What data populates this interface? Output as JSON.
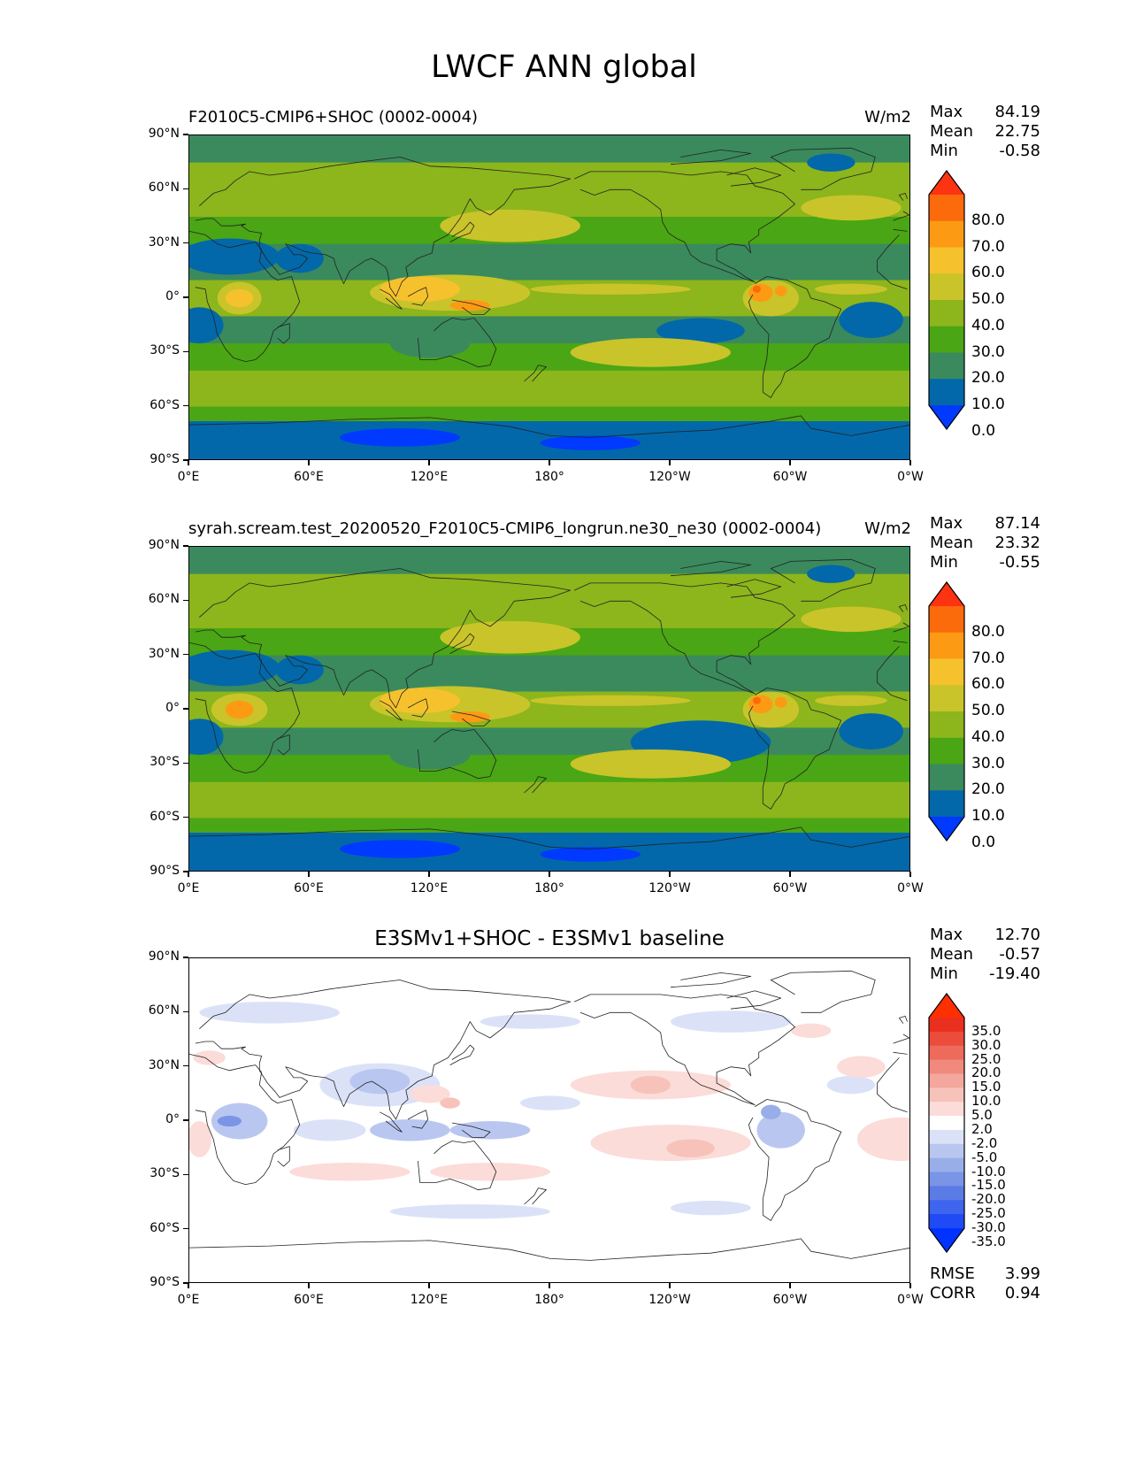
{
  "figure_title": "LWCF ANN global",
  "panels": [
    {
      "title": "F2010C5-CMIP6+SHOC (0002-0004)",
      "units": "W/m2",
      "stats": [
        {
          "label": "Max",
          "value": "84.19"
        },
        {
          "label": "Mean",
          "value": "22.75"
        },
        {
          "label": "Min",
          "value": "-0.58"
        }
      ],
      "colorbar_labels": [
        "80.0",
        "70.0",
        "60.0",
        "50.0",
        "40.0",
        "30.0",
        "20.0",
        "10.0",
        "0.0"
      ],
      "colors": [
        "#0039ff",
        "#0268aa",
        "#3a8a5e",
        "#4aa614",
        "#8db51c",
        "#c9c42a",
        "#f5c12d",
        "#fc9a14",
        "#fb6a0b",
        "#fd3312"
      ]
    },
    {
      "title": "syrah.scream.test_20200520_F2010C5-CMIP6_longrun.ne30_ne30 (0002-0004)",
      "units": "W/m2",
      "stats": [
        {
          "label": "Max",
          "value": "87.14"
        },
        {
          "label": "Mean",
          "value": "23.32"
        },
        {
          "label": "Min",
          "value": "-0.55"
        }
      ],
      "colorbar_labels": [
        "80.0",
        "70.0",
        "60.0",
        "50.0",
        "40.0",
        "30.0",
        "20.0",
        "10.0",
        "0.0"
      ],
      "colors": [
        "#0039ff",
        "#0268aa",
        "#3a8a5e",
        "#4aa614",
        "#8db51c",
        "#c9c42a",
        "#f5c12d",
        "#fc9a14",
        "#fb6a0b",
        "#fd3312"
      ]
    },
    {
      "title": "E3SMv1+SHOC - E3SMv1 baseline",
      "units": "",
      "stats": [
        {
          "label": "Max",
          "value": "12.70"
        },
        {
          "label": "Mean",
          "value": "-0.57"
        },
        {
          "label": "Min",
          "value": "-19.40"
        }
      ],
      "colorbar_labels": [
        "35.0",
        "30.0",
        "25.0",
        "20.0",
        "15.0",
        "10.0",
        "5.0",
        "2.0",
        "-2.0",
        "-5.0",
        "-10.0",
        "-15.0",
        "-20.0",
        "-25.0",
        "-30.0",
        "-35.0"
      ],
      "colors": [
        "#0033ff",
        "#1f4af5",
        "#3f64ee",
        "#5b7be6",
        "#7a94e6",
        "#98aee9",
        "#b9c7f0",
        "#dbe2f8",
        "#ffffff",
        "#fbdcd8",
        "#f7c2ba",
        "#f4a79d",
        "#f1897c",
        "#ee6b5c",
        "#ec4c3c",
        "#ea2f1f",
        "#ff3000"
      ],
      "bottom_stats": [
        {
          "label": "RMSE",
          "value": "3.99"
        },
        {
          "label": "CORR",
          "value": "0.94"
        }
      ]
    }
  ],
  "lat_labels": [
    "90°N",
    "60°N",
    "30°N",
    "0°",
    "30°S",
    "60°S",
    "90°S"
  ],
  "lon_labels": [
    "0°E",
    "60°E",
    "120°E",
    "180°",
    "120°W",
    "60°W",
    "0°W"
  ]
}
